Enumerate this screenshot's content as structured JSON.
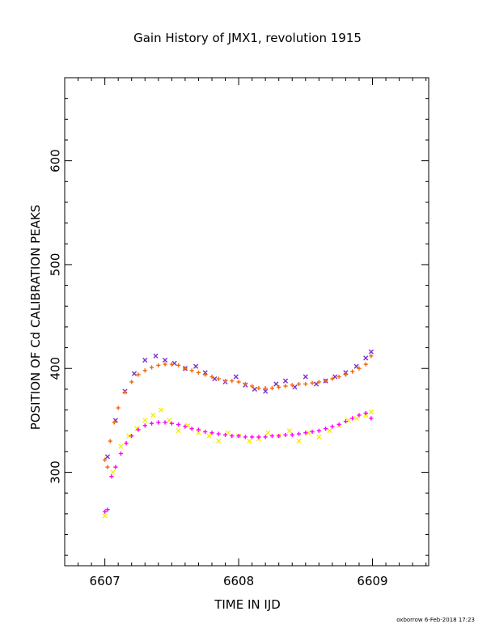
{
  "chart_data": {
    "type": "scatter",
    "title": "Gain History of JMX1, revolution 1915",
    "xlabel": "TIME IN IJD",
    "ylabel": "POSITION OF Cd CALIBRATION PEAKS",
    "xlim": [
      6606.7,
      6609.42
    ],
    "ylim": [
      210,
      680
    ],
    "xticks": [
      6607,
      6608,
      6609
    ],
    "yticks": [
      300,
      400,
      500,
      600
    ],
    "grid": false,
    "series": [
      {
        "marker": "x",
        "color": "#7b2fd1",
        "x": [
          6607.02,
          6607.08,
          6607.15,
          6607.22,
          6607.3,
          6607.38,
          6607.45,
          6607.52,
          6607.6,
          6607.68,
          6607.75,
          6607.82,
          6607.9,
          6607.98,
          6608.05,
          6608.12,
          6608.2,
          6608.28,
          6608.35,
          6608.42,
          6608.5,
          6608.58,
          6608.65,
          6608.72,
          6608.8,
          6608.88,
          6608.95,
          6608.99
        ],
        "y": [
          315,
          350,
          378,
          395,
          408,
          412,
          408,
          405,
          400,
          402,
          396,
          390,
          387,
          392,
          384,
          380,
          378,
          385,
          388,
          382,
          392,
          385,
          388,
          392,
          396,
          402,
          410,
          416
        ]
      },
      {
        "marker": "+",
        "color": "#f06a10",
        "x": [
          6607.0,
          6607.02,
          6607.04,
          6607.07,
          6607.1,
          6607.15,
          6607.2,
          6607.25,
          6607.3,
          6607.35,
          6607.4,
          6607.45,
          6607.5,
          6607.55,
          6607.6,
          6607.65,
          6607.7,
          6607.75,
          6607.8,
          6607.85,
          6607.9,
          6607.95,
          6608.0,
          6608.05,
          6608.1,
          6608.15,
          6608.2,
          6608.25,
          6608.3,
          6608.35,
          6608.4,
          6608.45,
          6608.5,
          6608.55,
          6608.6,
          6608.65,
          6608.7,
          6608.75,
          6608.8,
          6608.85,
          6608.9,
          6608.95,
          6608.99
        ],
        "y": [
          312,
          305,
          330,
          348,
          362,
          377,
          387,
          394,
          398,
          401,
          403,
          404,
          404,
          403,
          400,
          398,
          396,
          394,
          392,
          390,
          388,
          388,
          387,
          385,
          383,
          381,
          381,
          381,
          382,
          383,
          384,
          385,
          385,
          386,
          387,
          388,
          390,
          392,
          394,
          397,
          400,
          404,
          412
        ]
      },
      {
        "marker": "x",
        "color": "#f5f000",
        "x": [
          6607.0,
          6607.06,
          6607.12,
          6607.18,
          6607.24,
          6607.3,
          6607.36,
          6607.42,
          6607.48,
          6607.55,
          6607.62,
          6607.7,
          6607.78,
          6607.85,
          6607.92,
          6608.0,
          6608.08,
          6608.15,
          6608.22,
          6608.3,
          6608.38,
          6608.45,
          6608.52,
          6608.6,
          6608.68,
          6608.75,
          6608.82,
          6608.88,
          6608.95,
          6608.99
        ],
        "y": [
          258,
          300,
          325,
          335,
          342,
          350,
          355,
          360,
          350,
          340,
          345,
          338,
          335,
          330,
          338,
          335,
          330,
          332,
          338,
          335,
          340,
          330,
          338,
          334,
          340,
          345,
          350,
          352,
          355,
          358
        ]
      },
      {
        "marker": "+",
        "color": "#ff00ff",
        "x": [
          6607.0,
          6607.02,
          6607.05,
          6607.08,
          6607.12,
          6607.16,
          6607.2,
          6607.25,
          6607.3,
          6607.35,
          6607.4,
          6607.45,
          6607.5,
          6607.55,
          6607.6,
          6607.65,
          6607.7,
          6607.75,
          6607.8,
          6607.85,
          6607.9,
          6607.95,
          6608.0,
          6608.05,
          6608.1,
          6608.15,
          6608.2,
          6608.25,
          6608.3,
          6608.35,
          6608.4,
          6608.45,
          6608.5,
          6608.55,
          6608.6,
          6608.65,
          6608.7,
          6608.75,
          6608.8,
          6608.85,
          6608.9,
          6608.95,
          6608.99
        ],
        "y": [
          262,
          264,
          296,
          305,
          318,
          328,
          335,
          341,
          345,
          347,
          348,
          348,
          347,
          346,
          344,
          342,
          341,
          339,
          338,
          337,
          336,
          335,
          335,
          334,
          334,
          334,
          334,
          335,
          335,
          336,
          336,
          337,
          338,
          339,
          340,
          342,
          344,
          346,
          349,
          352,
          355,
          357,
          352
        ]
      }
    ]
  },
  "footer": {
    "stamp": "oxborrow  6-Feb-2018 17:23"
  }
}
